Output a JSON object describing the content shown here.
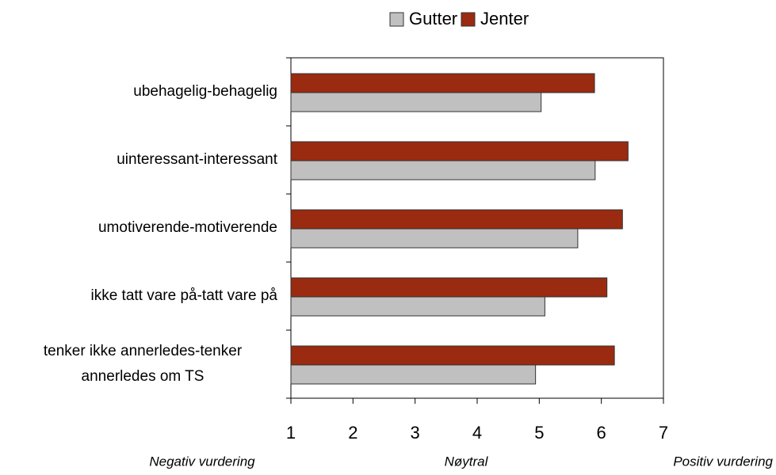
{
  "chart_data": {
    "type": "bar",
    "orientation": "horizontal",
    "categories": [
      "ubehagelig-behagelig",
      "uinteressant-interessant",
      "umotiverende-motiverende",
      "ikke tatt vare på-tatt vare på",
      "tenker ikke annerledes-tenker annerledes om TS"
    ],
    "series": [
      {
        "name": "Gutter",
        "color": "#c0c0c0",
        "values": [
          5.03,
          5.9,
          5.62,
          5.09,
          4.94
        ]
      },
      {
        "name": "Jenter",
        "color": "#9a2a10",
        "values": [
          5.89,
          6.43,
          6.34,
          6.09,
          6.21
        ]
      }
    ],
    "xlim": [
      1,
      7
    ],
    "xticks": [
      1,
      2,
      3,
      4,
      5,
      6,
      7
    ],
    "annotations": [
      "Negativ vurdering",
      "Nøytral",
      "Positiv vurdering"
    ],
    "legend": "top",
    "grid": false
  }
}
